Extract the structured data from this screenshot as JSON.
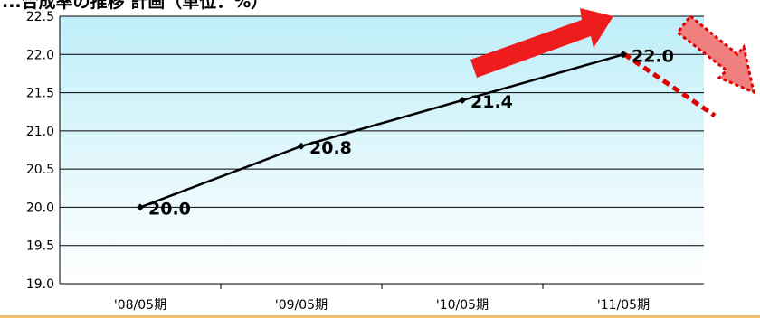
{
  "chart_data": {
    "type": "line",
    "title": "...合成率の推移 計画（単位：%）",
    "categories": [
      "'08/05期",
      "'09/05期",
      "'10/05期",
      "'11/05期"
    ],
    "series": [
      {
        "values": [
          20.0,
          20.8,
          21.4,
          22.0
        ]
      }
    ],
    "data_labels": [
      "20.0",
      "20.8",
      "21.4",
      "22.0"
    ],
    "yticks": [
      "19.0",
      "19.5",
      "20.0",
      "20.5",
      "21.0",
      "21.5",
      "22.0",
      "22.5"
    ],
    "ylim": [
      19.0,
      22.5
    ],
    "grid": true,
    "legend": "none",
    "colors": {
      "plot_bg_top": "#bfeef8",
      "plot_bg_bottom": "#ffffff",
      "line": "#000000",
      "up_arrow": "#ee1c1c",
      "down_arrow": "#f08080",
      "dashed_line": "#e00000",
      "bottom_rule": "#f0c070"
    }
  }
}
